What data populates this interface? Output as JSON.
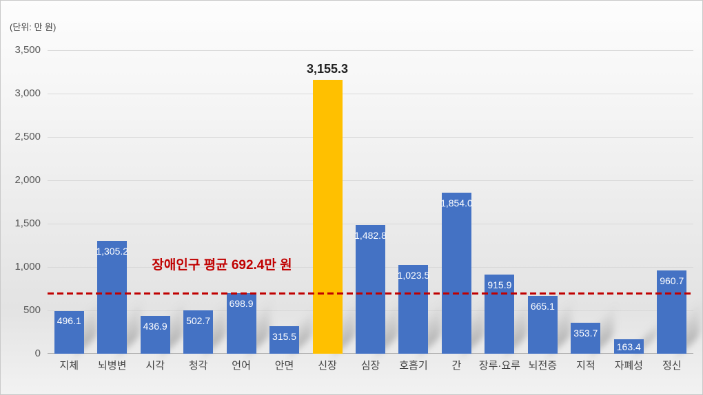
{
  "chart_data": {
    "type": "bar",
    "unit_label": "(단위: 만 원)",
    "categories": [
      "지체",
      "뇌병변",
      "시각",
      "청각",
      "언어",
      "안면",
      "신장",
      "심장",
      "호흡기",
      "간",
      "장루·요루",
      "뇌전증",
      "지적",
      "자폐성",
      "정신"
    ],
    "values": [
      496.1,
      1305.2,
      436.9,
      502.7,
      698.9,
      315.5,
      3155.3,
      1482.8,
      1023.5,
      1854.0,
      915.9,
      665.1,
      353.7,
      163.4,
      960.7
    ],
    "value_labels": [
      "496.1",
      "1,305.2",
      "436.9",
      "502.7",
      "698.9",
      "315.5",
      "3,155.3",
      "1,482.8",
      "1,023.5",
      "1,854.0",
      "915.9",
      "665.1",
      "353.7",
      "163.4",
      "960.7"
    ],
    "highlight_index": 6,
    "ylim": [
      0,
      3500
    ],
    "yticks": [
      0,
      500,
      1000,
      1500,
      2000,
      2500,
      3000,
      3500
    ],
    "ytick_labels": [
      "0",
      "500",
      "1,000",
      "1,500",
      "2,000",
      "2,500",
      "3,000",
      "3,500"
    ],
    "grid": true,
    "legend": "none",
    "average_line": {
      "value": 692.4,
      "label": "장애인구 평균 692.4만 원"
    },
    "colors": {
      "bar": "#4472C4",
      "highlight": "#FFC000",
      "average": "#C00000",
      "value_label_inside": "#FFFFFF",
      "value_label_outside": "#202020",
      "grid": "#D8D8D8",
      "axis": "#ABABAB",
      "tick_text": "#595959",
      "category_text": "#404040"
    }
  }
}
